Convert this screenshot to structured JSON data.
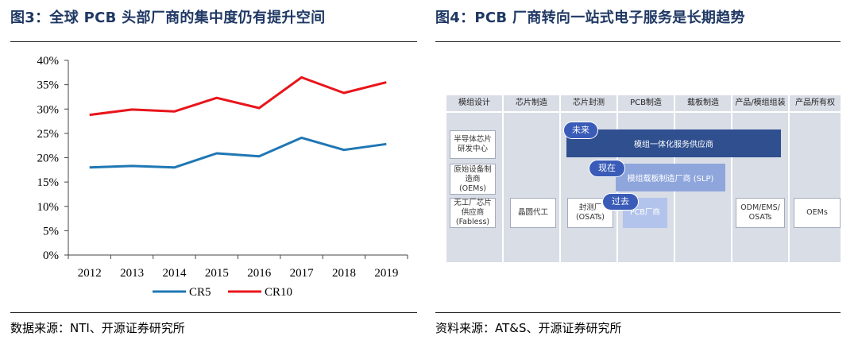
{
  "left": {
    "title": "图3：全球 PCB 头部厂商的集中度仍有提升空间",
    "source": "数据来源：NTI、开源证券研究所"
  },
  "right": {
    "title": "图4：PCB 厂商转向一站式电子服务是长期趋势",
    "source": "资料来源：AT&S、开源证券研究所",
    "columns": [
      "模组设计",
      "芯片制造",
      "芯片封测",
      "PCB制造",
      "载板制造",
      "产品/模组组装",
      "产品所有权"
    ],
    "row_boxes": {
      "semiconductor": "半导体芯片\n研发中心",
      "oem": "原始设备制\n造商\n(OEMs)",
      "fabless": "无工厂芯片\n供应商\n(Fabless)",
      "foundry": "晶圆代工",
      "osat": "封测厂\n(OSATs)",
      "pcb_maker": "PCB厂商",
      "odm": "ODM/EMS/\nOSATs",
      "oems": "OEMs"
    },
    "bars": {
      "module_integration": "模组一体化服务供应商",
      "module_carrier": "模组载板制造厂商 (SLP)"
    },
    "pills": {
      "future": "未来",
      "now": "现在",
      "past": "过去"
    },
    "colors": {
      "future_bar": "#2f4f8f",
      "now_bar": "#8fa6dc",
      "past_box": "#b3c4ec",
      "pill": "#3a5cb8",
      "column_bg": "#d9dde6"
    }
  },
  "chart_data": {
    "type": "line",
    "x": [
      "2012",
      "2013",
      "2014",
      "2015",
      "2016",
      "2017",
      "2018",
      "2019"
    ],
    "series": [
      {
        "name": "CR5",
        "color": "#1f77b4",
        "values": [
          18.0,
          18.3,
          18.0,
          20.9,
          20.3,
          24.1,
          21.6,
          22.8
        ]
      },
      {
        "name": "CR10",
        "color": "#e8151b",
        "values": [
          28.8,
          29.9,
          29.5,
          32.3,
          30.2,
          36.5,
          33.3,
          35.5
        ]
      }
    ],
    "y_tick_labels": [
      "0%",
      "5%",
      "10%",
      "15%",
      "20%",
      "25%",
      "30%",
      "35%",
      "40%"
    ],
    "ylim": [
      0,
      40
    ],
    "y_step": 5,
    "title": "",
    "xlabel": "",
    "ylabel": "",
    "grid": false,
    "legend_position": "bottom"
  }
}
